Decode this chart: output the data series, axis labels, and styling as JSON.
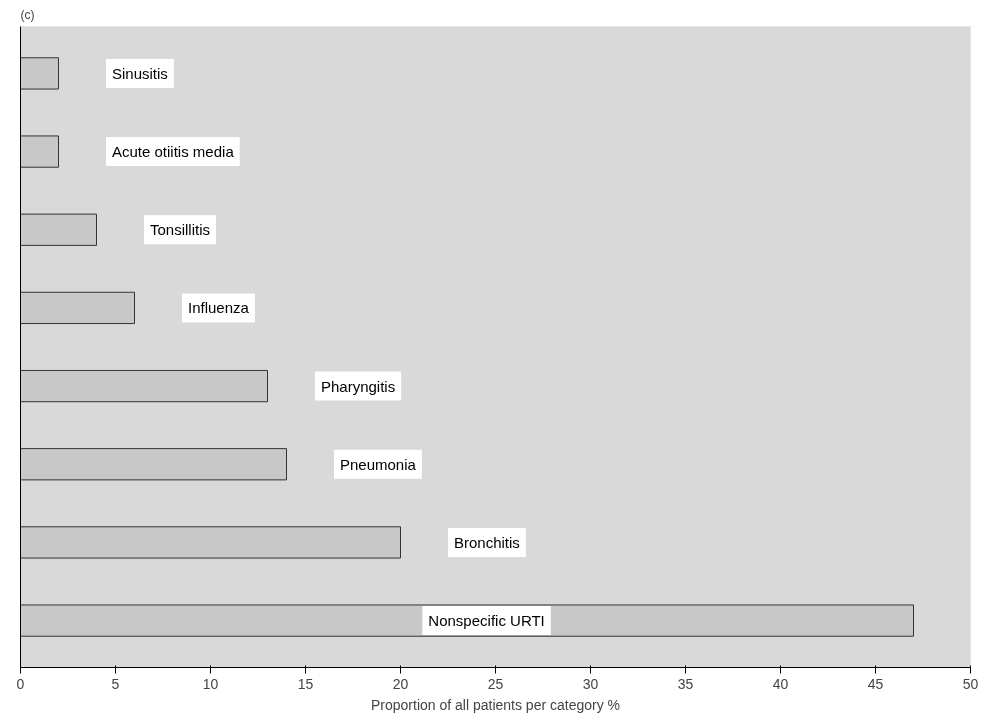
{
  "chart_data": {
    "type": "bar",
    "orientation": "horizontal",
    "title": "(c)",
    "categories": [
      "Sinusitis",
      "Acute otiitis media",
      "Tonsillitis",
      "Influenza",
      "Pharyngitis",
      "Pneumonia",
      "Bronchitis",
      "Nonspecific URTI"
    ],
    "values": [
      2,
      2,
      4,
      6,
      13,
      14,
      20,
      47
    ],
    "color": "#c8c8c8",
    "xlabel": "Proportion of all patients per category %",
    "xlim": [
      0,
      50
    ],
    "xticks": [
      0,
      5,
      10,
      15,
      20,
      25,
      30,
      35,
      40,
      45,
      50
    ],
    "tick_labels": "x",
    "grid": false
  }
}
